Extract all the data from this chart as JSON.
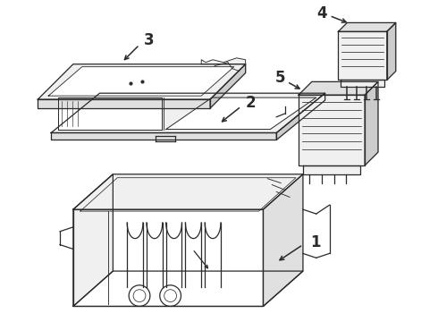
{
  "background_color": "#ffffff",
  "line_color": "#2a2a2a",
  "label_color": "#000000",
  "figsize": [
    4.9,
    3.6
  ],
  "dpi": 100,
  "lw": 0.9
}
